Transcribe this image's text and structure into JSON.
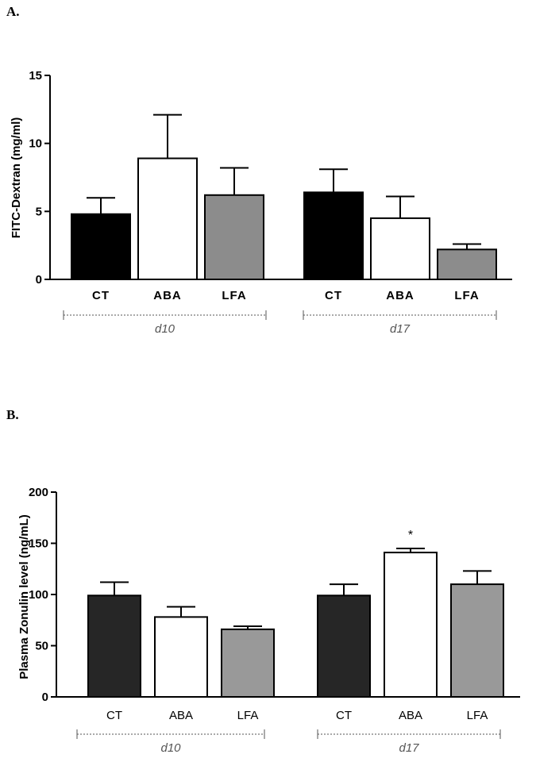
{
  "chart_data": [
    {
      "type": "bar",
      "panel_label": "A.",
      "ylabel": "FITC-Dextran (mg/ml)",
      "ylim": [
        0,
        15
      ],
      "yticks": [
        0,
        5,
        10,
        15
      ],
      "categories": [
        "CT",
        "ABA",
        "LFA",
        "CT",
        "ABA",
        "LFA"
      ],
      "groups": [
        {
          "label": "d10",
          "indices": [
            0,
            1,
            2
          ]
        },
        {
          "label": "d17",
          "indices": [
            3,
            4,
            5
          ]
        }
      ],
      "values": [
        4.8,
        8.9,
        6.2,
        6.4,
        4.5,
        2.2
      ],
      "errors": [
        1.2,
        3.2,
        2.0,
        1.7,
        1.6,
        0.4
      ],
      "colors": [
        "#000000",
        "#ffffff",
        "#8c8c8c",
        "#000000",
        "#ffffff",
        "#8c8c8c"
      ],
      "annotations": [],
      "grid": false
    },
    {
      "type": "bar",
      "panel_label": "B.",
      "ylabel": "Plasma Zonulin level (ng/mL)",
      "ylim": [
        0,
        200
      ],
      "yticks": [
        0,
        50,
        100,
        150,
        200
      ],
      "categories": [
        "CT",
        "ABA",
        "LFA",
        "CT",
        "ABA",
        "LFA"
      ],
      "groups": [
        {
          "label": "d10",
          "indices": [
            0,
            1,
            2
          ]
        },
        {
          "label": "d17",
          "indices": [
            3,
            4,
            5
          ]
        }
      ],
      "values": [
        99,
        78,
        66,
        99,
        141,
        110
      ],
      "errors": [
        13,
        10,
        3,
        11,
        4,
        13
      ],
      "colors": [
        "#262626",
        "#ffffff",
        "#999999",
        "#262626",
        "#ffffff",
        "#999999"
      ],
      "annotations": [
        {
          "index": 4,
          "text": "*"
        }
      ],
      "grid": false
    }
  ]
}
